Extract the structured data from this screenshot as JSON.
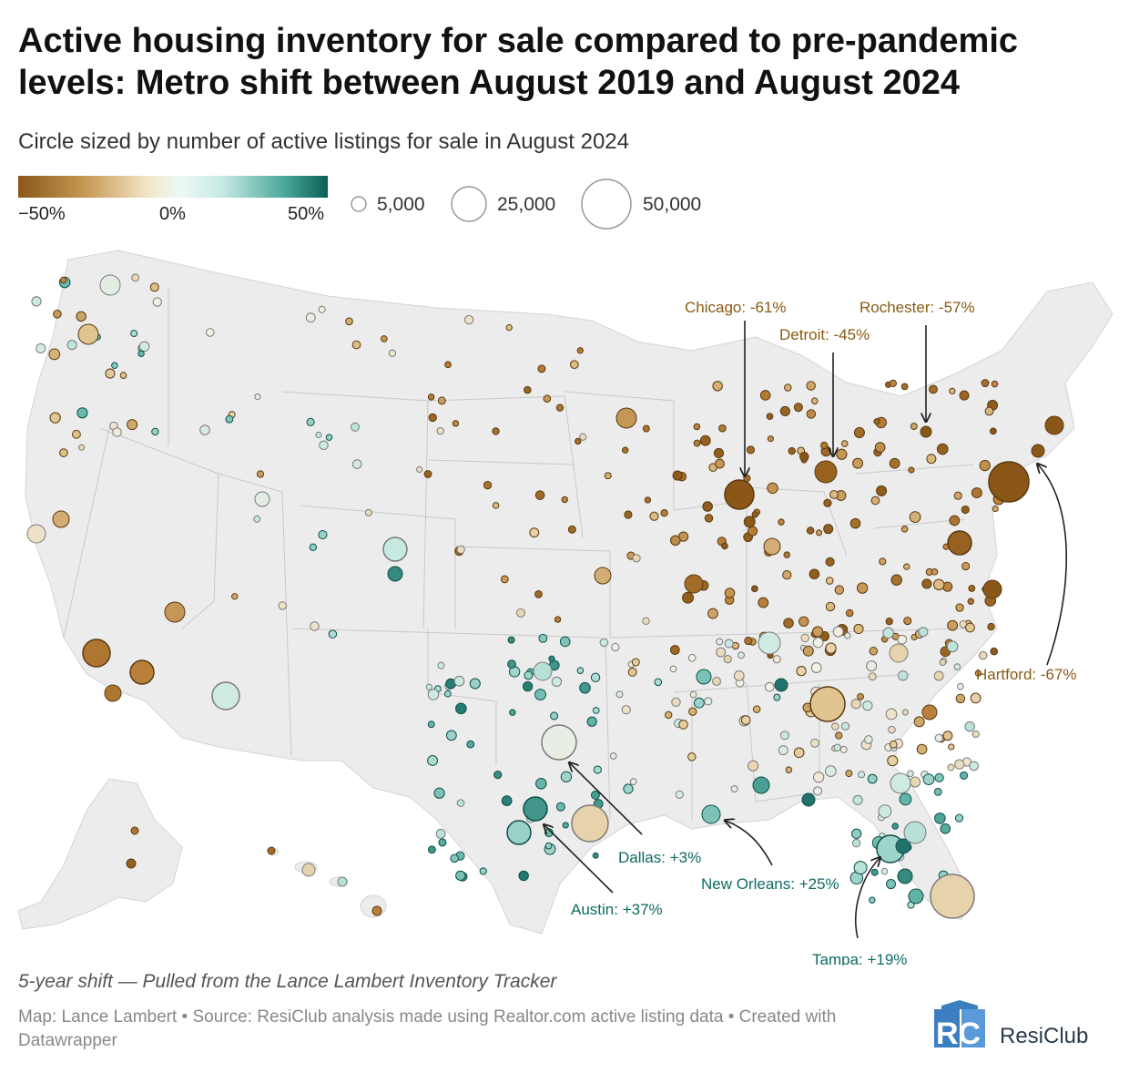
{
  "title": "Active housing inventory for sale compared to pre-pandemic levels: Metro shift between August 2019 and August 2024",
  "subtitle": "Circle sized by number of active listings for sale in August 2024",
  "legend": {
    "color_scale": {
      "min_label": "−50%",
      "mid_label": "0%",
      "max_label": "50%"
    },
    "size_scale": [
      {
        "value": 5000,
        "label": "5,000"
      },
      {
        "value": 25000,
        "label": "25,000"
      },
      {
        "value": 50000,
        "label": "50,000"
      }
    ]
  },
  "colors": {
    "decline": "#8a5718",
    "neutral": "#f3ede0",
    "increase": "#0b5e56",
    "decline_text": "#8a5a12",
    "increase_text": "#0d6b62"
  },
  "annotations": [
    {
      "label": "Chicago: -61%",
      "value": -61
    },
    {
      "label": "Detroit: -45%",
      "value": -45
    },
    {
      "label": "Rochester: -57%",
      "value": -57
    },
    {
      "label": "Hartford: -67%",
      "value": -67
    },
    {
      "label": "Dallas: +3%",
      "value": 3
    },
    {
      "label": "New Orleans: +25%",
      "value": 25
    },
    {
      "label": "Austin: +37%",
      "value": 37
    },
    {
      "label": "Tampa: +19%",
      "value": 19
    }
  ],
  "note": "5-year shift — Pulled from the Lance Lambert Inventory Tracker",
  "source": "Map: Lance Lambert • Source: ResiClub analysis made using Realtor.com active listing data • Created with Datawrapper",
  "logo": {
    "text": "ResiClub",
    "mark": "RC"
  }
}
